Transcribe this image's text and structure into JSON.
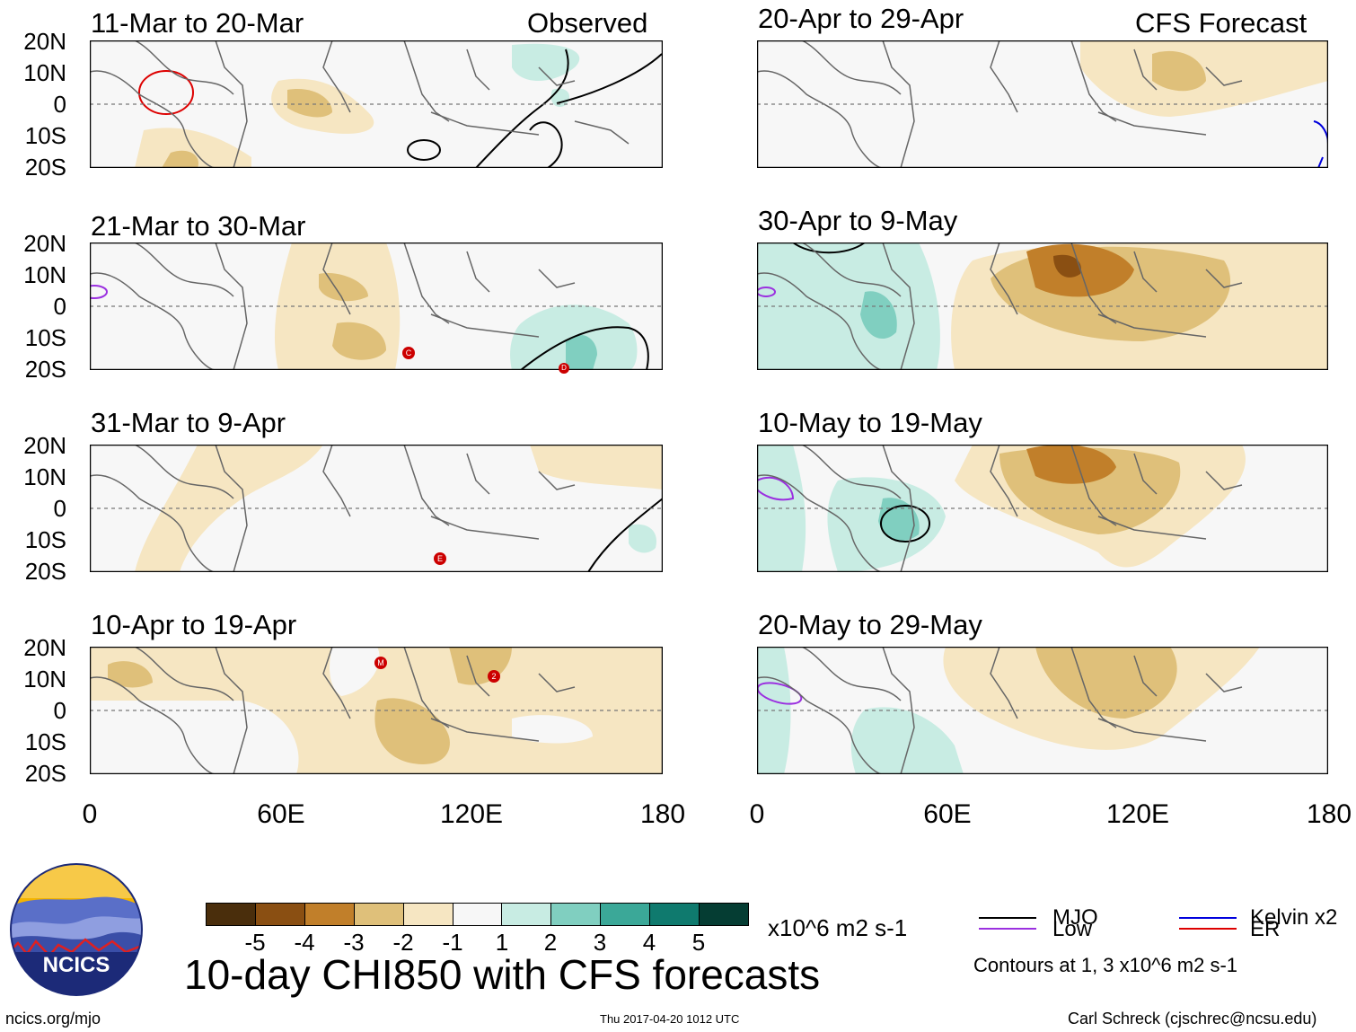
{
  "headers": {
    "left": "Observed",
    "right": "CFS Forecast"
  },
  "lat_labels": [
    "20N",
    "10N",
    "0",
    "10S",
    "20S"
  ],
  "lon_labels": [
    "0",
    "60E",
    "120E",
    "180"
  ],
  "panels": [
    {
      "title": "11-Mar to 20-Mar",
      "storms": []
    },
    {
      "title": "21-Mar to 30-Mar",
      "storms": [
        "C",
        "D"
      ]
    },
    {
      "title": "31-Mar to 9-Apr",
      "storms": [
        "E"
      ]
    },
    {
      "title": "10-Apr to 19-Apr",
      "storms": [
        "M",
        "2"
      ]
    },
    {
      "title": "20-Apr to 29-Apr",
      "storms": []
    },
    {
      "title": "30-Apr to 9-May",
      "storms": []
    },
    {
      "title": "10-May to 19-May",
      "storms": []
    },
    {
      "title": "20-May to 29-May",
      "storms": []
    }
  ],
  "colorbar": {
    "colors": [
      "#4a2e0c",
      "#8a4f12",
      "#c17f2a",
      "#dfc07a",
      "#f6e6c2",
      "#f7f7f7",
      "#c8ece3",
      "#80cfc0",
      "#3ba898",
      "#0f7a6e",
      "#053d33"
    ],
    "ticks": [
      "-5",
      "-4",
      "-3",
      "-2",
      "-1",
      "1",
      "2",
      "3",
      "4",
      "5"
    ],
    "units": "x10^6 m2 s-1"
  },
  "legend": {
    "items": [
      {
        "label": "MJO",
        "color": "#000000"
      },
      {
        "label": "Kelvin x2",
        "color": "#0000dd"
      },
      {
        "label": "Low",
        "color": "#9b30e0"
      },
      {
        "label": "ER",
        "color": "#dd0000"
      }
    ],
    "note": "Contours at 1, 3 x10^6 m2 s-1"
  },
  "main_title": "10-day CHI850 with CFS forecasts",
  "logo_text": "NCICS",
  "footer": {
    "left": "ncics.org/mjo",
    "center": "Thu 2017-04-20 1012 UTC",
    "right": "Carl Schreck (cjschrec@ncsu.edu)"
  }
}
